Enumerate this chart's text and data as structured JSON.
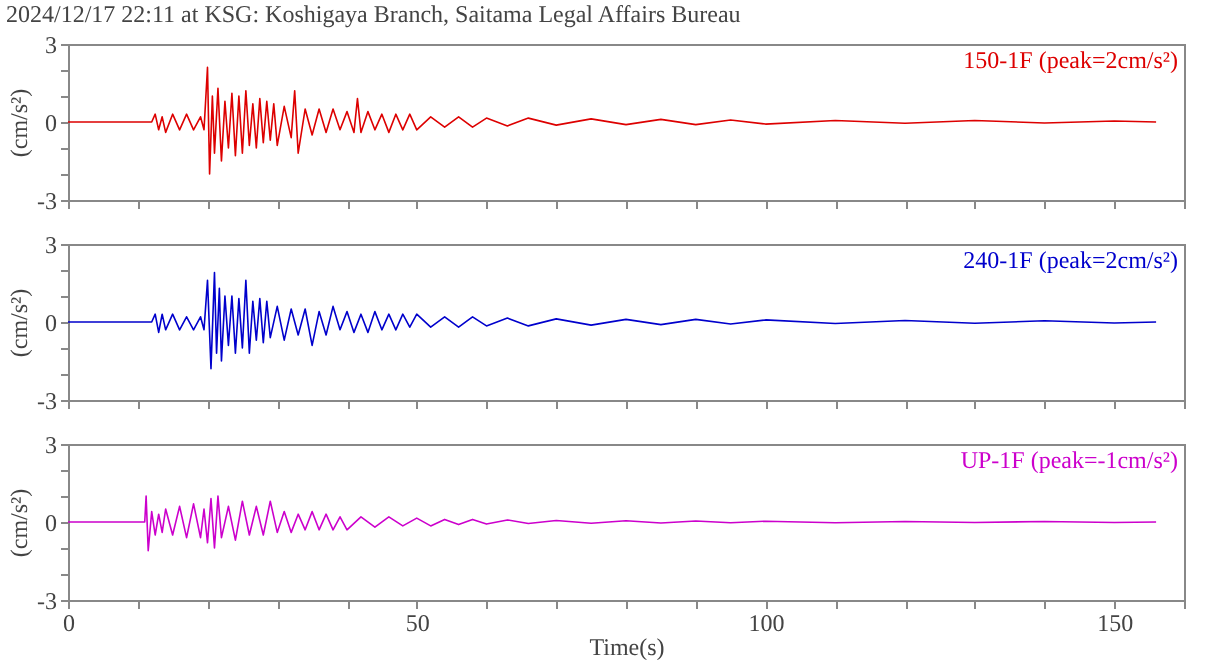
{
  "chart_data": [
    {
      "type": "line",
      "title": "2024/12/17 22:11 at KSG: Koshigaya Branch, Saitama Legal Affairs Bureau",
      "ylabel": "(cm/s²)",
      "xlim": [
        0,
        160
      ],
      "xticks": [
        0,
        {
          "value": 10,
          "label": null
        },
        {
          "value": 20,
          "label": null
        },
        {
          "value": 30,
          "label": null
        },
        {
          "value": 40,
          "label": null
        },
        50,
        {
          "value": 60,
          "label": null
        },
        {
          "value": 70,
          "label": null
        },
        {
          "value": 80,
          "label": null
        },
        {
          "value": 90,
          "label": null
        },
        100,
        {
          "value": 110,
          "label": null
        },
        {
          "value": 120,
          "label": null
        },
        {
          "value": 130,
          "label": null
        },
        {
          "value": 140,
          "label": null
        },
        150,
        {
          "value": 160,
          "label": null
        }
      ],
      "ylim": [
        -3,
        3
      ],
      "yticks": [
        -3,
        {
          "value": -2,
          "label": null
        },
        {
          "value": -1,
          "label": null
        },
        0,
        {
          "value": 1,
          "label": null
        },
        {
          "value": 2,
          "label": null
        },
        3
      ],
      "tick_labels": "y",
      "grid": false,
      "legend": false,
      "series": [
        {
          "name": "150-1F (peak=2cm/s²)",
          "color": "#dd0000",
          "x": [
            0,
            12,
            12.5,
            13,
            13.5,
            14,
            15,
            16,
            17,
            18,
            19,
            19.5,
            20,
            20.3,
            20.7,
            21,
            21.5,
            22,
            22.5,
            23,
            23.5,
            24,
            24.5,
            25,
            25.5,
            26,
            26.5,
            27,
            27.5,
            28,
            28.5,
            29,
            29.5,
            30,
            31,
            32,
            32.5,
            33,
            34,
            35,
            36,
            37,
            38,
            39,
            40,
            41,
            41.5,
            42,
            43,
            44,
            45,
            46,
            47,
            48,
            49,
            50,
            52,
            54,
            56,
            58,
            60,
            63,
            66,
            70,
            75,
            80,
            85,
            90,
            95,
            100,
            110,
            120,
            130,
            140,
            150,
            156
          ],
          "values": [
            0,
            0,
            0.3,
            -0.3,
            0.2,
            -0.4,
            0.3,
            -0.3,
            0.3,
            -0.3,
            0.2,
            -0.3,
            2.1,
            -2.0,
            1.0,
            -1.2,
            1.3,
            -1.5,
            0.8,
            -1.0,
            1.1,
            -1.3,
            1.0,
            -1.2,
            1.2,
            -0.9,
            0.7,
            -1.0,
            0.9,
            -0.8,
            0.8,
            -0.7,
            0.7,
            -0.9,
            0.6,
            -0.6,
            1.2,
            -1.2,
            0.5,
            -0.5,
            0.5,
            -0.4,
            0.5,
            -0.3,
            0.4,
            -0.4,
            0.9,
            -0.4,
            0.4,
            -0.3,
            0.3,
            -0.4,
            0.3,
            -0.3,
            0.3,
            -0.3,
            0.2,
            -0.2,
            0.2,
            -0.2,
            0.15,
            -0.15,
            0.15,
            -0.12,
            0.12,
            -0.1,
            0.1,
            -0.1,
            0.08,
            -0.08,
            0.06,
            -0.05,
            0.06,
            -0.04,
            0.04,
            0
          ]
        }
      ]
    },
    {
      "type": "line",
      "ylabel": "(cm/s²)",
      "xlim": [
        0,
        160
      ],
      "xticks": [
        0,
        {
          "value": 10,
          "label": null
        },
        {
          "value": 20,
          "label": null
        },
        {
          "value": 30,
          "label": null
        },
        {
          "value": 40,
          "label": null
        },
        50,
        {
          "value": 60,
          "label": null
        },
        {
          "value": 70,
          "label": null
        },
        {
          "value": 80,
          "label": null
        },
        {
          "value": 90,
          "label": null
        },
        100,
        {
          "value": 110,
          "label": null
        },
        {
          "value": 120,
          "label": null
        },
        {
          "value": 130,
          "label": null
        },
        {
          "value": 140,
          "label": null
        },
        150,
        {
          "value": 160,
          "label": null
        }
      ],
      "ylim": [
        -3,
        3
      ],
      "yticks": [
        -3,
        {
          "value": -2,
          "label": null
        },
        {
          "value": -1,
          "label": null
        },
        0,
        {
          "value": 1,
          "label": null
        },
        {
          "value": 2,
          "label": null
        },
        3
      ],
      "tick_labels": "y",
      "grid": false,
      "legend": false,
      "series": [
        {
          "name": "240-1F (peak=2cm/s²)",
          "color": "#0000cc",
          "x": [
            0,
            12,
            12.5,
            13,
            13.5,
            14,
            15,
            16,
            17,
            18,
            19,
            19.5,
            20,
            20.5,
            21,
            21.3,
            21.7,
            22,
            22.5,
            23,
            23.5,
            24,
            24.5,
            25,
            25.5,
            26,
            26.5,
            27,
            27.5,
            28,
            28.5,
            29,
            30,
            31,
            32,
            33,
            34,
            35,
            36,
            37,
            38,
            39,
            40,
            41,
            42,
            43,
            44,
            45,
            46,
            47,
            48,
            49,
            50,
            52,
            54,
            56,
            58,
            60,
            63,
            66,
            70,
            75,
            80,
            85,
            90,
            95,
            100,
            110,
            120,
            130,
            140,
            150,
            156
          ],
          "values": [
            0,
            0,
            0.3,
            -0.4,
            0.3,
            -0.3,
            0.3,
            -0.3,
            0.2,
            -0.3,
            0.2,
            -0.3,
            1.6,
            -1.8,
            1.9,
            -1.2,
            1.3,
            -1.5,
            1.0,
            -0.9,
            1.0,
            -1.2,
            0.9,
            -1.0,
            1.6,
            -1.2,
            0.8,
            -0.7,
            0.9,
            -0.8,
            0.8,
            -0.6,
            0.6,
            -0.7,
            0.5,
            -0.5,
            0.5,
            -0.9,
            0.4,
            -0.5,
            0.6,
            -0.3,
            0.4,
            -0.4,
            0.3,
            -0.4,
            0.4,
            -0.3,
            0.3,
            -0.3,
            0.3,
            -0.2,
            0.3,
            -0.2,
            0.2,
            -0.2,
            0.2,
            -0.15,
            0.15,
            -0.15,
            0.12,
            -0.12,
            0.1,
            -0.1,
            0.1,
            -0.08,
            0.08,
            -0.06,
            0.06,
            -0.05,
            0.05,
            -0.04,
            0
          ]
        }
      ]
    },
    {
      "type": "line",
      "ylabel": "(cm/s²)",
      "xlabel": "Time(s)",
      "xlim": [
        0,
        160
      ],
      "xticks": [
        0,
        {
          "value": 10,
          "label": null
        },
        {
          "value": 20,
          "label": null
        },
        {
          "value": 30,
          "label": null
        },
        {
          "value": 40,
          "label": null
        },
        50,
        {
          "value": 60,
          "label": null
        },
        {
          "value": 70,
          "label": null
        },
        {
          "value": 80,
          "label": null
        },
        {
          "value": 90,
          "label": null
        },
        100,
        {
          "value": 110,
          "label": null
        },
        {
          "value": 120,
          "label": null
        },
        {
          "value": 130,
          "label": null
        },
        {
          "value": 140,
          "label": null
        },
        150,
        {
          "value": 160,
          "label": null
        }
      ],
      "ylim": [
        -3,
        3
      ],
      "yticks": [
        -3,
        {
          "value": -2,
          "label": null
        },
        {
          "value": -1,
          "label": null
        },
        0,
        {
          "value": 1,
          "label": null
        },
        {
          "value": 2,
          "label": null
        },
        3
      ],
      "grid": false,
      "legend": false,
      "series": [
        {
          "name": "UP-1F (peak=-1cm/s²)",
          "color": "#cc00cc",
          "x": [
            0,
            11,
            11.2,
            11.5,
            12,
            12.5,
            13,
            13.5,
            14,
            15,
            16,
            17,
            18,
            19,
            19.5,
            20,
            20.5,
            21,
            21.5,
            22,
            23,
            24,
            25,
            26,
            27,
            28,
            29,
            30,
            31,
            32,
            33,
            34,
            35,
            36,
            37,
            38,
            39,
            40,
            42,
            44,
            46,
            48,
            50,
            52,
            54,
            56,
            58,
            60,
            63,
            66,
            70,
            75,
            80,
            85,
            90,
            95,
            100,
            110,
            120,
            130,
            140,
            150,
            156
          ],
          "values": [
            0,
            0,
            1.0,
            -1.1,
            0.4,
            -0.5,
            0.3,
            -0.4,
            0.5,
            -0.5,
            0.6,
            -0.6,
            0.7,
            -0.6,
            0.5,
            -0.8,
            0.9,
            -1.0,
            1.0,
            -0.6,
            0.6,
            -0.7,
            0.8,
            -0.5,
            0.6,
            -0.5,
            0.8,
            -0.4,
            0.4,
            -0.4,
            0.3,
            -0.3,
            0.4,
            -0.3,
            0.3,
            -0.3,
            0.2,
            -0.3,
            0.2,
            -0.2,
            0.2,
            -0.15,
            0.15,
            -0.15,
            0.1,
            -0.1,
            0.1,
            -0.08,
            0.08,
            -0.06,
            0.06,
            -0.05,
            0.05,
            -0.04,
            0.04,
            -0.03,
            0.03,
            -0.03,
            0.02,
            -0.02,
            0.02,
            -0.02,
            0
          ]
        }
      ]
    }
  ]
}
